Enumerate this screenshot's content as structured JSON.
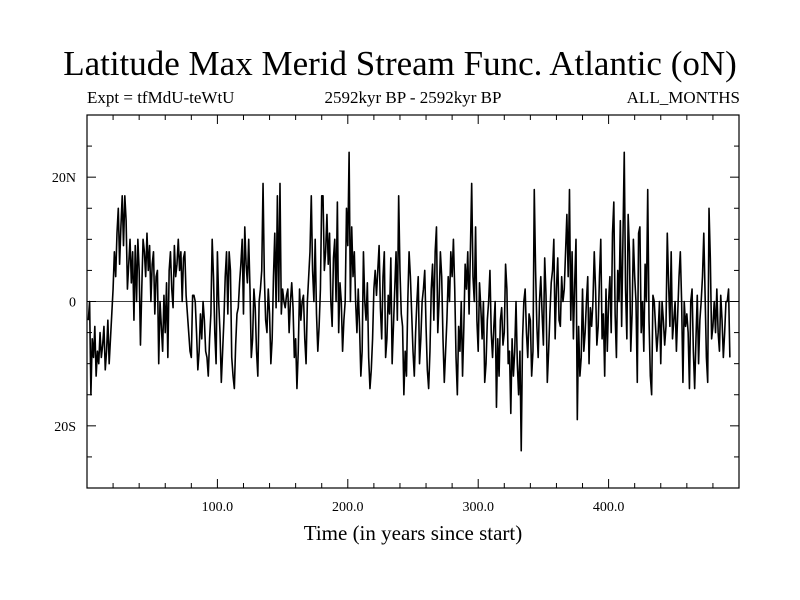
{
  "title": "Latitude Max Merid Stream Func. Atlantic (oN)",
  "subtitle_left": "Expt = tfMdU-teWtU",
  "subtitle_center": "2592kyr BP - 2592kyr BP",
  "subtitle_right": "ALL_MONTHS",
  "chart_data": {
    "type": "line",
    "title": "Latitude Max Merid Stream Func. Atlantic (oN)",
    "xlabel": "Time (in years since start)",
    "ylabel": "",
    "xlim": [
      0,
      500
    ],
    "ylim": [
      -30,
      30
    ],
    "x_ticks": [
      100,
      200,
      300,
      400
    ],
    "x_tick_labels": [
      "100.0",
      "200.0",
      "300.0",
      "400.0"
    ],
    "y_ticks": [
      -20,
      0,
      20
    ],
    "y_tick_labels": [
      "20S",
      "0",
      "20N"
    ],
    "zero_line": true,
    "grid": false,
    "series": [
      {
        "name": "",
        "color": "#000000",
        "x_start": 1,
        "x_step": 1,
        "values": [
          -3,
          0,
          -15,
          -6,
          -9,
          -4,
          -12,
          -8,
          -10,
          -5,
          -9,
          -7,
          -4,
          -11,
          -8,
          -3,
          -10,
          -6,
          -2,
          2,
          8,
          4,
          11,
          15,
          6,
          12,
          17,
          9,
          17,
          13,
          2,
          6,
          10,
          3,
          8,
          -3,
          9,
          0,
          10,
          5,
          -7,
          2,
          10,
          8,
          4,
          11,
          5,
          9,
          0,
          6,
          8,
          -2,
          4,
          5,
          -10,
          0,
          -4,
          -8,
          1,
          -5,
          3,
          -9,
          5,
          8,
          2,
          -1,
          9,
          4,
          6,
          10,
          5,
          8,
          0,
          7,
          8,
          1,
          -2,
          -5,
          -8,
          -9,
          1,
          1,
          0,
          -5,
          -11,
          -8,
          -2,
          -6,
          0,
          -3,
          -8,
          -9,
          -12,
          -6,
          -2,
          10,
          4,
          -5,
          -10,
          8,
          0,
          -5,
          -13,
          -8,
          -3,
          4,
          8,
          -2,
          8,
          5,
          -9,
          -12,
          -14,
          -7,
          -2,
          -1,
          3,
          6,
          10,
          -2,
          12,
          6,
          3,
          10,
          2,
          -9,
          -6,
          2,
          -1,
          -8,
          -12,
          0,
          2,
          5,
          19,
          4,
          -3,
          -5,
          2,
          -2,
          -10,
          -6,
          4,
          11,
          -1,
          17,
          0,
          19,
          -2,
          2,
          0,
          -1,
          1,
          2,
          -5,
          0,
          3,
          -1,
          -9,
          -6,
          -14,
          -8,
          2,
          -3,
          0,
          1,
          -6,
          -10,
          0,
          4,
          8,
          17,
          5,
          0,
          10,
          -2,
          -8,
          -4,
          2,
          17,
          17,
          5,
          8,
          14,
          6,
          11,
          0,
          -4,
          7,
          10,
          0,
          16,
          -5,
          3,
          0,
          -8,
          -3,
          0,
          15,
          9,
          24,
          0,
          12,
          4,
          8,
          0,
          -5,
          2,
          -4,
          -12,
          -8,
          8,
          0,
          -3,
          3,
          -9,
          -14,
          -11,
          -6,
          2,
          5,
          1,
          5,
          9,
          -1,
          -6,
          4,
          8,
          -9,
          -6,
          1,
          -2,
          7,
          -10,
          -4,
          2,
          8,
          -3,
          17,
          5,
          -2,
          -4,
          -15,
          -8,
          -12,
          0,
          8,
          4,
          -2,
          -8,
          -12,
          -5,
          0,
          4,
          -10,
          -6,
          0,
          2,
          5,
          -4,
          -11,
          -14,
          -8,
          2,
          6,
          -3,
          8,
          12,
          -5,
          0,
          8,
          4,
          -6,
          -13,
          -8,
          -3,
          4,
          0,
          8,
          4,
          10,
          2,
          -9,
          -15,
          -4,
          -8,
          0,
          -12,
          -4,
          6,
          2,
          8,
          -2,
          8,
          19,
          4,
          0,
          12,
          -3,
          -8,
          3,
          -1,
          -6,
          0,
          -13,
          -10,
          -3,
          0,
          5,
          -5,
          -9,
          -4,
          0,
          -17,
          -6,
          -12,
          -3,
          -1,
          -7,
          -5,
          6,
          2,
          -10,
          -8,
          -18,
          -6,
          -12,
          -8,
          0,
          -10,
          -15,
          -8,
          -24,
          -6,
          0,
          2,
          -5,
          -9,
          -2,
          -3,
          -12,
          -8,
          18,
          5,
          -4,
          -9,
          0,
          4,
          -2,
          -7,
          7,
          1,
          -13,
          -8,
          -2,
          3,
          5,
          10,
          -6,
          2,
          7,
          -3,
          -4,
          4,
          0,
          2,
          8,
          14,
          4,
          18,
          -3,
          8,
          -6,
          3,
          10,
          -19,
          -4,
          -12,
          -9,
          2,
          -8,
          -5,
          0,
          4,
          -10,
          -1,
          -4,
          0,
          8,
          2,
          -7,
          -4,
          4,
          10,
          -6,
          -2,
          -12,
          2,
          -8,
          0,
          4,
          -5,
          11,
          16,
          -2,
          -9,
          5,
          0,
          13,
          -4,
          10,
          24,
          2,
          -6,
          14,
          8,
          -8,
          -2,
          10,
          4,
          0,
          -13,
          11,
          12,
          -5,
          0,
          -8,
          6,
          0,
          18,
          -3,
          -12,
          -15,
          1,
          0,
          -4,
          -8,
          -5,
          0,
          -10,
          0,
          -3,
          -7,
          -4,
          11,
          3,
          -4,
          8,
          -6,
          -3,
          0,
          -8,
          -2,
          4,
          8,
          0,
          -13,
          0,
          -4,
          -2,
          -5,
          -14,
          0,
          2,
          -8,
          -14,
          -6,
          1,
          -10,
          -3,
          0,
          4,
          11,
          1,
          -9,
          -13,
          15,
          7,
          -6,
          -4,
          0,
          -5,
          2,
          -5,
          -8,
          1,
          -3,
          -9,
          -5,
          0,
          0,
          2,
          -9
        ]
      }
    ]
  }
}
